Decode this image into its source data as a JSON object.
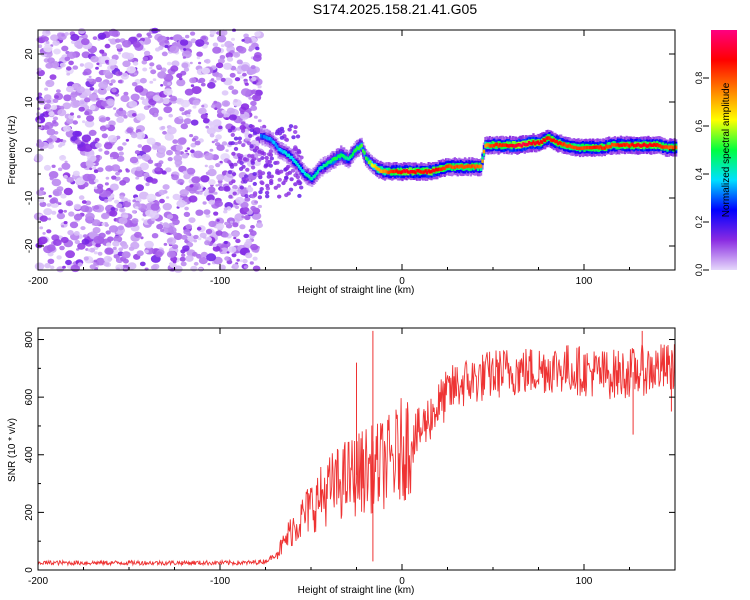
{
  "figure": {
    "title": "S174.2025.158.21.41.G05"
  },
  "chart_data": [
    {
      "type": "heatmap",
      "xlabel": "Height of straight line (km)",
      "ylabel": "Frequency (Hz)",
      "xlim": [
        -200,
        150
      ],
      "ylim": [
        -25,
        25
      ],
      "x_ticks": [
        -200,
        -100,
        0,
        100
      ],
      "y_ticks": [
        -20,
        -10,
        0,
        10,
        20
      ],
      "colorbar": {
        "label": "Normalized spectral amplitude",
        "range": [
          0,
          1
        ],
        "ticks": [
          "0.0",
          "0.2",
          "0.4",
          "0.6",
          "0.8"
        ],
        "colormap": [
          "#e6d8fb",
          "#8a2be2",
          "#0000ff",
          "#00e0ff",
          "#00ff40",
          "#ffff00",
          "#ff8000",
          "#ff0000",
          "#ff0080"
        ]
      },
      "noise_region": {
        "x_range": [
          -200,
          -78
        ],
        "frequency_range": [
          -25,
          25
        ],
        "amplitude": "low"
      },
      "ridge": {
        "x": [
          -78,
          -72,
          -68,
          -63,
          -58,
          -54,
          -50,
          -46,
          -42,
          -38,
          -34,
          -30,
          -26,
          -23,
          -20,
          -17,
          -14,
          -10,
          -5,
          0,
          5,
          10,
          15,
          20,
          25,
          30,
          35,
          40,
          43,
          45,
          50,
          55,
          60,
          65,
          70,
          75,
          80,
          85,
          90,
          95,
          100,
          105,
          110,
          115,
          120,
          125,
          130,
          135,
          140,
          145,
          150
        ],
        "frequency": [
          3,
          2,
          0,
          -1,
          -3,
          -5,
          -6,
          -4,
          -3,
          -2,
          -1,
          -2,
          0,
          1,
          -2,
          -3,
          -4,
          -4.5,
          -4.5,
          -4.5,
          -4.5,
          -4.5,
          -4.5,
          -4,
          -3.5,
          -3.5,
          -3.5,
          -3.5,
          -3.5,
          1,
          1,
          1,
          1,
          1,
          1.5,
          1.5,
          2.5,
          1.5,
          1,
          0.5,
          0.5,
          0.5,
          0.5,
          1,
          1,
          1,
          1,
          1,
          1,
          0.5,
          0.5
        ],
        "amplitude": [
          0.3,
          0.35,
          0.35,
          0.4,
          0.4,
          0.4,
          0.45,
          0.4,
          0.45,
          0.5,
          0.5,
          0.45,
          0.5,
          0.55,
          0.5,
          0.6,
          0.7,
          0.75,
          0.85,
          0.9,
          0.9,
          0.85,
          0.9,
          0.85,
          0.8,
          0.8,
          0.8,
          0.8,
          0.75,
          0.7,
          0.85,
          0.85,
          0.9,
          0.95,
          0.9,
          0.9,
          0.85,
          0.85,
          0.8,
          0.8,
          0.8,
          0.85,
          0.85,
          0.8,
          0.85,
          0.85,
          0.9,
          0.9,
          0.85,
          0.8,
          0.8
        ]
      }
    },
    {
      "type": "line",
      "xlabel": "Height of straight line (km)",
      "ylabel": "SNR (10 * v/v)",
      "xlim": [
        -200,
        150
      ],
      "ylim": [
        0,
        840
      ],
      "x_ticks": [
        -200,
        -100,
        0,
        100
      ],
      "y_ticks": [
        0,
        200,
        400,
        600,
        800
      ],
      "series_color": "#ee3333",
      "series": [
        {
          "x": [
            -200,
            -180,
            -160,
            -140,
            -120,
            -100,
            -85,
            -75,
            -70,
            -65,
            -60,
            -55,
            -50,
            -45,
            -40,
            -35,
            -30,
            -25,
            -20,
            -15,
            -10,
            -5,
            0,
            5,
            10,
            15,
            20,
            25,
            30,
            40,
            50,
            60,
            70,
            80,
            90,
            100,
            110,
            120,
            130,
            140,
            150
          ],
          "y": [
            25,
            25,
            25,
            25,
            25,
            25,
            25,
            30,
            50,
            90,
            150,
            180,
            220,
            250,
            280,
            300,
            320,
            330,
            350,
            350,
            370,
            380,
            420,
            450,
            480,
            530,
            570,
            610,
            640,
            660,
            680,
            690,
            690,
            700,
            700,
            690,
            680,
            680,
            690,
            700,
            700
          ],
          "spikes": [
            {
              "x": -16,
              "y": 830
            },
            {
              "x": -16,
              "y": 30
            },
            {
              "x": -25,
              "y": 720
            },
            {
              "x": 132,
              "y": 830
            },
            {
              "x": 127,
              "y": 470
            },
            {
              "x": 148,
              "y": 550
            }
          ]
        }
      ]
    }
  ]
}
